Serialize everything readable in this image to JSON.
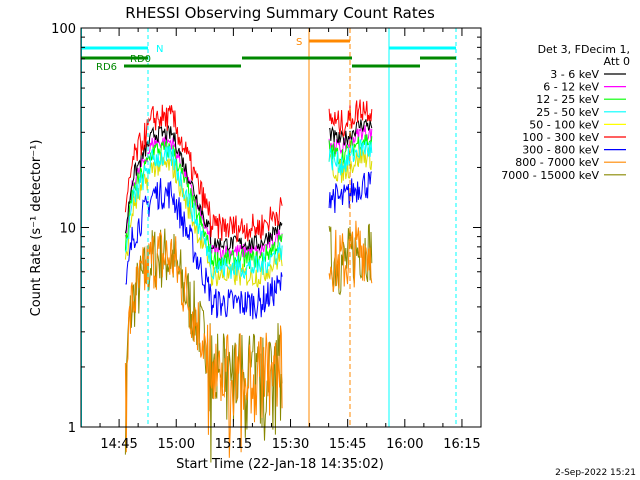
{
  "chart_data": {
    "type": "line",
    "title": "RHESSI Observing Summary Count Rates",
    "xlabel": "Start Time (22-Jan-18 14:35:02)",
    "ylabel": "Count Rate (s⁻¹ detector⁻¹)",
    "yscale": "log",
    "ylim": [
      1,
      100
    ],
    "xlim_minutes_after_1435": [
      0,
      105
    ],
    "x_ticks": [
      "14:45",
      "15:00",
      "15:15",
      "15:30",
      "15:45",
      "16:00",
      "16:15"
    ],
    "y_ticks": [
      "1",
      "10",
      "100"
    ],
    "footer_date": "2-Sep-2022 15:21",
    "legend_header": [
      "Det 3, FDecim 1,",
      "Att 0"
    ],
    "series": [
      {
        "name": "3 - 6 keV",
        "color": "#000000"
      },
      {
        "name": "6 - 12 keV",
        "color": "#ff00ff"
      },
      {
        "name": "12 - 25 keV",
        "color": "#00ff00"
      },
      {
        "name": "25 - 50 keV",
        "color": "#00ffff"
      },
      {
        "name": "50 - 100 keV",
        "color": "#ffff00"
      },
      {
        "name": "100 - 300 keV",
        "color": "#ff0000"
      },
      {
        "name": "300 - 800 keV",
        "color": "#0000ff"
      },
      {
        "name": "800 - 7000 keV",
        "color": "#ff8800"
      },
      {
        "name": "7000 - 15000 keV",
        "color": "#888800"
      }
    ],
    "flag_labels": {
      "n": "N",
      "s": "S",
      "rd0": "RD0",
      "rd6": "RD6"
    },
    "colors": {
      "cyan": "#00ffff",
      "orange": "#ff8800",
      "green": "#008800"
    }
  }
}
